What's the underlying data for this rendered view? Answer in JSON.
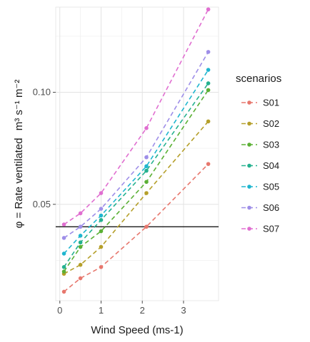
{
  "chart_data": {
    "type": "line",
    "xlabel": "Wind Speed (ms-1)",
    "ylabel_prefix": "φ = Rate ventilated",
    "ylabel_units": "m³ s⁻¹ m⁻²",
    "x_ticks": [
      0,
      1,
      2,
      3
    ],
    "y_ticks": [
      0.05,
      0.1
    ],
    "y_tick_labels": [
      "0.05",
      "0.10"
    ],
    "xlim": [
      -0.1,
      3.85
    ],
    "ylim": [
      0.007,
      0.138
    ],
    "grid": true,
    "legend_position": "right",
    "legend_title": "scenarios",
    "hline": {
      "y": 0.04,
      "color": "#000000"
    },
    "x": [
      0.1,
      0.5,
      1.0,
      2.1,
      3.6
    ],
    "series": [
      {
        "name": "S01",
        "color": "#E7776D",
        "values": [
          0.011,
          0.017,
          0.022,
          0.04,
          0.068
        ]
      },
      {
        "name": "S02",
        "color": "#B59F2A",
        "values": [
          0.019,
          0.023,
          0.031,
          0.055,
          0.087
        ]
      },
      {
        "name": "S03",
        "color": "#5BB035",
        "values": [
          0.02,
          0.031,
          0.038,
          0.06,
          0.101
        ]
      },
      {
        "name": "S04",
        "color": "#25B18F",
        "values": [
          0.022,
          0.033,
          0.043,
          0.065,
          0.104
        ]
      },
      {
        "name": "S05",
        "color": "#1FB6CF",
        "values": [
          0.028,
          0.036,
          0.045,
          0.067,
          0.11
        ]
      },
      {
        "name": "S06",
        "color": "#9E8EE8",
        "values": [
          0.035,
          0.04,
          0.048,
          0.071,
          0.118
        ]
      },
      {
        "name": "S07",
        "color": "#E06ED0",
        "values": [
          0.041,
          0.046,
          0.055,
          0.084,
          0.137
        ]
      }
    ]
  }
}
